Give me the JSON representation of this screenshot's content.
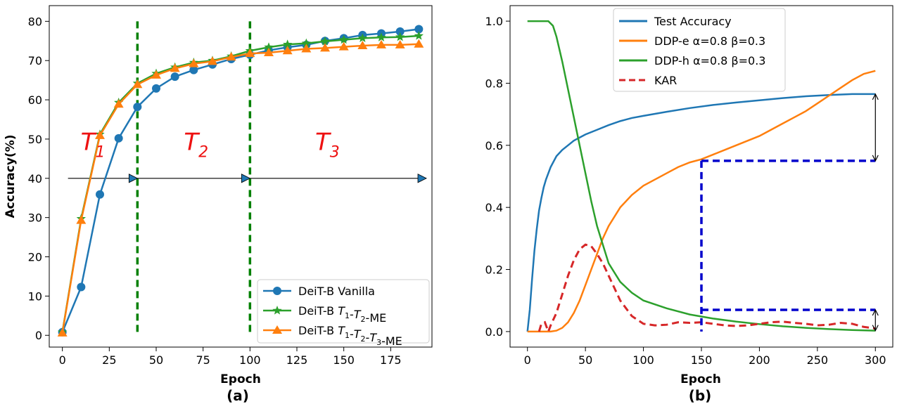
{
  "colors": {
    "blue": "#1f77b4",
    "orange": "#ff7f0e",
    "green": "#2ca02c",
    "red": "#d62728",
    "dark_green": "#008000",
    "dash_blue": "#0000cc",
    "phase_red": "#ee1111",
    "arrow_fill": "#1f77b4"
  },
  "chart_data": [
    {
      "type": "line",
      "panel_label": "(a)",
      "xlabel": "Epoch",
      "ylabel": "Accuracy(%)",
      "xlim": [
        -7,
        197
      ],
      "ylim": [
        -3,
        84
      ],
      "xticks": [
        0,
        25,
        50,
        75,
        100,
        125,
        150,
        175
      ],
      "yticks": [
        0,
        10,
        20,
        30,
        40,
        50,
        60,
        70,
        80
      ],
      "legend_position": "lower-right",
      "series": [
        {
          "name": "DeiT-B Vanilla",
          "legend_prefix": "DeiT-B ",
          "legend_label": "Vanilla",
          "color": "#1f77b4",
          "marker": "circle",
          "x": [
            0,
            10,
            20,
            30,
            40,
            50,
            60,
            70,
            80,
            90,
            100,
            110,
            120,
            130,
            140,
            150,
            160,
            170,
            180,
            190
          ],
          "y": [
            0.8,
            12.3,
            35.9,
            50.2,
            58.2,
            62.9,
            65.9,
            67.6,
            69.0,
            70.4,
            71.5,
            72.6,
            73.4,
            74.0,
            75.0,
            75.7,
            76.5,
            76.9,
            77.4,
            78.0
          ]
        },
        {
          "name": "DeiT-B T1-T2-ME",
          "legend_prefix": "DeiT-B ",
          "legend_label": "T1-T2-ME",
          "color": "#2ca02c",
          "marker": "star",
          "x": [
            0,
            10,
            20,
            30,
            40,
            50,
            60,
            70,
            80,
            90,
            100,
            110,
            120,
            130,
            140,
            150,
            160,
            170,
            180,
            190
          ],
          "y": [
            0.8,
            29.7,
            51.2,
            59.3,
            64.2,
            66.7,
            68.3,
            69.5,
            70.0,
            71.1,
            72.5,
            73.4,
            74.1,
            74.4,
            74.9,
            75.3,
            75.7,
            75.9,
            76.0,
            76.3
          ]
        },
        {
          "name": "DeiT-B T1-T2-T3-ME",
          "legend_prefix": "DeiT-B ",
          "legend_label": "T1-T2-T3-ME",
          "color": "#ff7f0e",
          "marker": "triangle",
          "x": [
            0,
            10,
            20,
            30,
            40,
            50,
            60,
            70,
            80,
            90,
            100,
            110,
            120,
            130,
            140,
            150,
            160,
            170,
            180,
            190
          ],
          "y": [
            0.6,
            29.3,
            50.9,
            58.9,
            63.9,
            66.3,
            68.0,
            69.2,
            69.8,
            70.9,
            71.8,
            72.0,
            72.5,
            73.0,
            73.2,
            73.5,
            73.8,
            74.0,
            74.0,
            74.2
          ]
        }
      ],
      "phase_boundaries_epoch": [
        40,
        100
      ],
      "phase_labels": [
        {
          "base": "T",
          "sub": "1",
          "x": 15,
          "y": 49
        },
        {
          "base": "T",
          "sub": "2",
          "x": 70,
          "y": 49
        },
        {
          "base": "T",
          "sub": "3",
          "x": 140,
          "y": 49
        }
      ],
      "timeline_arrow": {
        "y": 40,
        "x_start": 3,
        "arrow_heads_x": [
          40,
          100,
          194
        ]
      }
    },
    {
      "type": "line",
      "panel_label": "(b)",
      "xlabel": "Epoch",
      "ylabel": "",
      "xlim": [
        -15,
        315
      ],
      "ylim": [
        -0.05,
        1.05
      ],
      "xticks": [
        0,
        50,
        100,
        150,
        200,
        250,
        300
      ],
      "yticks": [
        0.0,
        0.2,
        0.4,
        0.6,
        0.8,
        1.0
      ],
      "legend_position": "top-center",
      "series": [
        {
          "name": "Test Accuracy",
          "legend_text": "Test Accuracy",
          "color": "#1f77b4",
          "style": "solid",
          "x": [
            0,
            2,
            4,
            6,
            8,
            10,
            12,
            14,
            16,
            18,
            20,
            25,
            30,
            35,
            40,
            45,
            50,
            60,
            70,
            80,
            90,
            100,
            120,
            140,
            160,
            180,
            200,
            220,
            240,
            260,
            280,
            300
          ],
          "y": [
            0.0,
            0.07,
            0.17,
            0.26,
            0.33,
            0.39,
            0.43,
            0.465,
            0.49,
            0.51,
            0.53,
            0.565,
            0.585,
            0.6,
            0.615,
            0.625,
            0.635,
            0.65,
            0.665,
            0.678,
            0.688,
            0.695,
            0.708,
            0.72,
            0.73,
            0.738,
            0.745,
            0.752,
            0.758,
            0.762,
            0.765,
            0.765
          ]
        },
        {
          "name": "DDP-e α=0.8 β=0.3",
          "legend_text": "DDP-e α=0.8 β=0.3",
          "color": "#ff7f0e",
          "style": "solid",
          "x": [
            0,
            10,
            20,
            25,
            30,
            35,
            40,
            45,
            50,
            55,
            60,
            65,
            70,
            80,
            90,
            100,
            110,
            120,
            130,
            140,
            150,
            160,
            170,
            180,
            190,
            200,
            210,
            220,
            230,
            240,
            250,
            260,
            270,
            280,
            290,
            300
          ],
          "y": [
            0.0,
            0.0,
            0.0,
            0.003,
            0.012,
            0.03,
            0.06,
            0.1,
            0.15,
            0.2,
            0.25,
            0.3,
            0.34,
            0.4,
            0.44,
            0.47,
            0.49,
            0.51,
            0.53,
            0.545,
            0.555,
            0.57,
            0.585,
            0.6,
            0.615,
            0.63,
            0.65,
            0.67,
            0.69,
            0.71,
            0.735,
            0.76,
            0.785,
            0.81,
            0.83,
            0.84
          ]
        },
        {
          "name": "DDP-h α=0.8 β=0.3",
          "legend_text": "DDP-h α=0.8 β=0.3",
          "color": "#2ca02c",
          "style": "solid",
          "x": [
            0,
            10,
            18,
            22,
            25,
            30,
            35,
            40,
            45,
            50,
            55,
            60,
            65,
            70,
            80,
            90,
            100,
            120,
            140,
            160,
            180,
            200,
            220,
            240,
            260,
            280,
            300
          ],
          "y": [
            1.0,
            1.0,
            1.0,
            0.985,
            0.95,
            0.87,
            0.78,
            0.69,
            0.6,
            0.51,
            0.42,
            0.34,
            0.28,
            0.22,
            0.16,
            0.125,
            0.1,
            0.075,
            0.055,
            0.042,
            0.032,
            0.024,
            0.017,
            0.012,
            0.008,
            0.005,
            0.003
          ]
        },
        {
          "name": "KAR",
          "legend_text": "KAR",
          "color": "#d62728",
          "style": "dashed",
          "x": [
            10,
            12,
            15,
            18,
            20,
            25,
            30,
            35,
            40,
            45,
            50,
            55,
            60,
            65,
            70,
            75,
            80,
            90,
            100,
            110,
            120,
            130,
            140,
            150,
            160,
            170,
            180,
            190,
            200,
            210,
            220,
            230,
            240,
            250,
            260,
            270,
            280,
            290,
            300
          ],
          "y": [
            0.0,
            0.025,
            0.03,
            0.0,
            0.02,
            0.06,
            0.12,
            0.18,
            0.23,
            0.265,
            0.28,
            0.275,
            0.25,
            0.22,
            0.18,
            0.14,
            0.1,
            0.05,
            0.025,
            0.02,
            0.022,
            0.03,
            0.028,
            0.03,
            0.025,
            0.02,
            0.018,
            0.02,
            0.025,
            0.03,
            0.032,
            0.028,
            0.025,
            0.02,
            0.022,
            0.028,
            0.025,
            0.015,
            0.01
          ]
        }
      ],
      "guides": {
        "upper_dashed_y": 0.55,
        "lower_dashed_y": 0.07,
        "dashed_start_x": 150,
        "dashed_end_x": 300,
        "arrow_x": 300,
        "upper_arrow_from": 0.765,
        "upper_arrow_to": 0.55,
        "lower_arrow_from": 0.07,
        "lower_arrow_to": 0.003
      }
    }
  ]
}
